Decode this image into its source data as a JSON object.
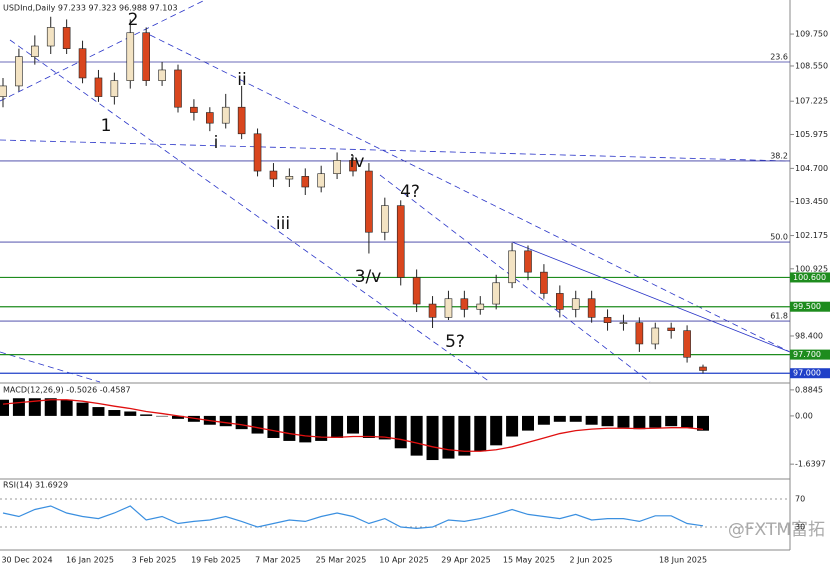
{
  "chart_data": [
    {
      "type": "candlestick",
      "title": "USDInd,Daily 97.233 97.323 96.988 97.103",
      "open": [
        107.4,
        107.8,
        108.9,
        109.3,
        110.0,
        109.2,
        108.1,
        107.4,
        108.0,
        109.8,
        108.0,
        108.4,
        107.0,
        106.8,
        106.4,
        107.0,
        106.0,
        104.6,
        104.3,
        104.4,
        104.0,
        104.5,
        105.0,
        104.6,
        102.3,
        103.3,
        100.6,
        99.6,
        99.1,
        99.8,
        99.4,
        99.6,
        100.4,
        101.6,
        100.8,
        100.0,
        99.4,
        99.8,
        99.1,
        98.9,
        98.9,
        98.1,
        98.7,
        98.6,
        97.233
      ],
      "high": [
        108.1,
        109.2,
        109.7,
        110.4,
        110.3,
        109.5,
        108.4,
        108.3,
        110.3,
        110.0,
        108.7,
        108.6,
        107.3,
        107.0,
        107.5,
        107.8,
        106.2,
        104.9,
        104.7,
        104.7,
        104.8,
        105.3,
        105.2,
        104.9,
        103.6,
        103.5,
        100.9,
        99.9,
        100.1,
        100.1,
        99.9,
        100.7,
        101.9,
        101.8,
        101.1,
        100.3,
        100.1,
        100.1,
        99.4,
        99.2,
        99.1,
        98.9,
        98.9,
        98.8,
        97.323
      ],
      "low": [
        107.0,
        107.6,
        108.6,
        109.0,
        109.0,
        107.9,
        107.2,
        107.1,
        107.7,
        107.8,
        107.8,
        106.8,
        106.5,
        106.1,
        106.2,
        105.8,
        104.4,
        104.0,
        104.0,
        103.7,
        103.8,
        104.3,
        104.4,
        101.5,
        102.0,
        100.3,
        99.3,
        98.7,
        99.0,
        99.1,
        99.2,
        99.4,
        100.2,
        100.5,
        99.8,
        99.1,
        99.1,
        98.9,
        98.6,
        98.6,
        97.8,
        97.9,
        98.3,
        97.4,
        96.988
      ],
      "close": [
        107.8,
        108.9,
        109.3,
        110.0,
        109.2,
        108.1,
        107.4,
        108.0,
        109.8,
        108.0,
        108.4,
        107.0,
        106.8,
        106.4,
        107.0,
        106.0,
        104.6,
        104.3,
        104.4,
        104.0,
        104.5,
        105.0,
        104.6,
        102.3,
        103.3,
        100.6,
        99.6,
        99.1,
        99.8,
        99.4,
        99.6,
        100.4,
        101.6,
        100.8,
        100.0,
        99.4,
        99.8,
        99.1,
        98.9,
        98.9,
        98.1,
        98.7,
        98.6,
        97.6,
        97.103
      ],
      "up_color": "#f3e3c3",
      "down_color": "#d9461e",
      "ylim": [
        96.67,
        111.03
      ],
      "yticks": [
        {
          "value": 109.75,
          "label": "109.750"
        },
        {
          "value": 108.55,
          "label": "108.550"
        },
        {
          "value": 107.225,
          "label": "107.225"
        },
        {
          "value": 105.975,
          "label": "105.975"
        },
        {
          "value": 104.7,
          "label": "104.700"
        },
        {
          "value": 103.45,
          "label": "103.450"
        },
        {
          "value": 102.175,
          "label": "102.175"
        },
        {
          "value": 100.925,
          "label": "100.925"
        },
        {
          "value": 98.4,
          "label": "98.400"
        }
      ],
      "fib_levels": [
        {
          "value": 108.7,
          "label": "23.6"
        },
        {
          "value": 104.98,
          "label": "38.2"
        },
        {
          "value": 101.93,
          "label": "50.0"
        },
        {
          "value": 98.96,
          "label": "61.8"
        }
      ],
      "levels": [
        {
          "value": 100.6,
          "label": "100.600",
          "color": "#1e8c1e"
        },
        {
          "value": 99.5,
          "label": "99.500",
          "color": "#1e8c1e"
        },
        {
          "value": 97.7,
          "label": "97.700",
          "color": "#1e8c1e"
        },
        {
          "value": 97.0,
          "label": "97.000",
          "color": "#2040c8"
        }
      ],
      "annotations": [
        "2",
        "1",
        "ii",
        "i",
        "iv",
        "4?",
        "iii",
        "3/v",
        "5?"
      ],
      "dates": [
        "30 Dec 2024",
        "16 Jan 2025",
        "3 Feb 2025",
        "19 Feb 2025",
        "7 Mar 2025",
        "25 Mar 2025",
        "10 Apr 2025",
        "29 Apr 2025",
        "15 May 2025",
        "2 Jun 2025",
        "18 Jun 2025"
      ],
      "watermark": "@FXTM富拓"
    },
    {
      "type": "macd",
      "title": "MACD(12,26,9) -0.5026 -0.4587",
      "color": "#000000",
      "signal_color": "#e01010",
      "values": [
        0.55,
        0.6,
        0.6,
        0.6,
        0.55,
        0.45,
        0.3,
        0.2,
        0.15,
        0.05,
        0.0,
        -0.1,
        -0.2,
        -0.3,
        -0.35,
        -0.45,
        -0.6,
        -0.75,
        -0.85,
        -0.9,
        -0.85,
        -0.75,
        -0.6,
        -0.75,
        -0.8,
        -1.1,
        -1.35,
        -1.5,
        -1.45,
        -1.35,
        -1.2,
        -1.0,
        -0.7,
        -0.5,
        -0.3,
        -0.2,
        -0.2,
        -0.3,
        -0.35,
        -0.4,
        -0.45,
        -0.4,
        -0.35,
        -0.4,
        -0.5026
      ],
      "signal": [
        0.4,
        0.45,
        0.5,
        0.55,
        0.55,
        0.5,
        0.42,
        0.33,
        0.25,
        0.15,
        0.08,
        0.0,
        -0.08,
        -0.16,
        -0.23,
        -0.3,
        -0.4,
        -0.5,
        -0.6,
        -0.68,
        -0.72,
        -0.73,
        -0.7,
        -0.7,
        -0.72,
        -0.8,
        -0.92,
        -1.05,
        -1.15,
        -1.2,
        -1.2,
        -1.15,
        -1.05,
        -0.9,
        -0.75,
        -0.6,
        -0.5,
        -0.45,
        -0.42,
        -0.42,
        -0.43,
        -0.42,
        -0.4,
        -0.4,
        -0.4587
      ],
      "ylim": [
        -2.11,
        1.05
      ],
      "yticks": [
        0.8845,
        {
          "value": 0,
          "label": "0.00"
        },
        -1.6397
      ]
    },
    {
      "type": "rsi",
      "title": "RSI(14) 31.6929",
      "color": "#3a8fe0",
      "values": [
        50,
        45,
        55,
        60,
        50,
        45,
        42,
        50,
        60,
        40,
        45,
        35,
        38,
        40,
        45,
        38,
        30,
        35,
        40,
        38,
        45,
        50,
        45,
        35,
        42,
        30,
        28,
        30,
        40,
        38,
        42,
        48,
        55,
        48,
        45,
        42,
        48,
        40,
        42,
        42,
        38,
        46,
        46,
        35,
        31.6929
      ],
      "ylim": [
        0,
        100
      ],
      "yticks": [
        70,
        30
      ]
    }
  ]
}
